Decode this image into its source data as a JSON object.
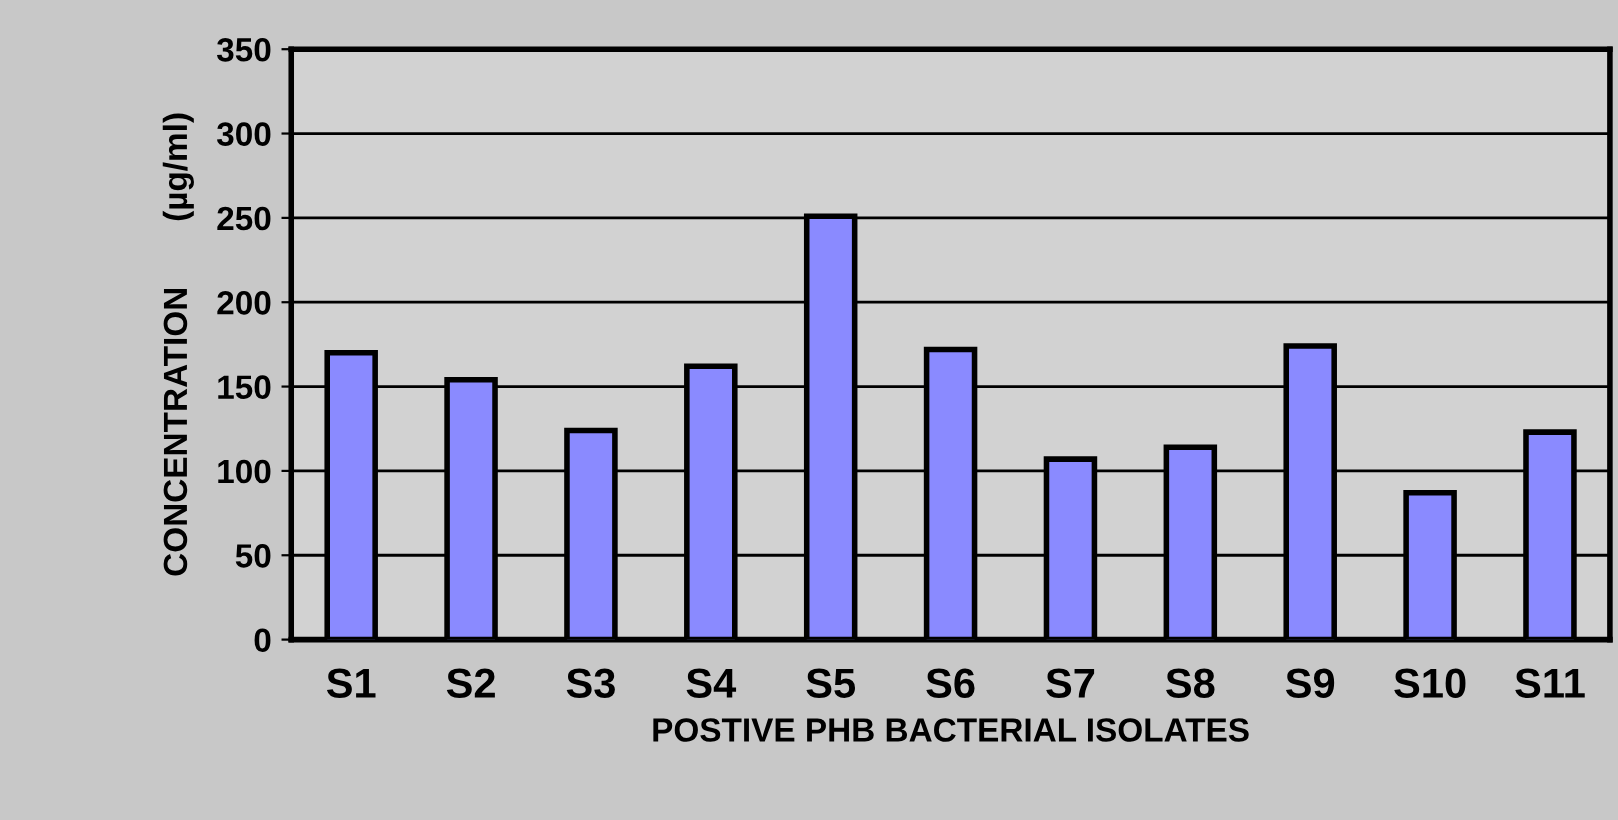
{
  "chart_data": {
    "type": "bar",
    "xlabel": "POSTIVE PHB BACTERIAL ISOLATES",
    "ylabel": "CONCENTRATION       (µg/ml)",
    "categories": [
      "S1",
      "S2",
      "S3",
      "S4",
      "S5",
      "S6",
      "S7",
      "S8",
      "S9",
      "S10",
      "S11"
    ],
    "values": [
      170,
      154,
      124,
      162,
      251,
      172,
      107,
      114,
      174,
      87,
      123
    ],
    "color": "#8a8aff",
    "ylim": [
      0,
      350
    ],
    "yticks": [
      0,
      50,
      100,
      150,
      200,
      250,
      300,
      350
    ],
    "grid": "y"
  }
}
